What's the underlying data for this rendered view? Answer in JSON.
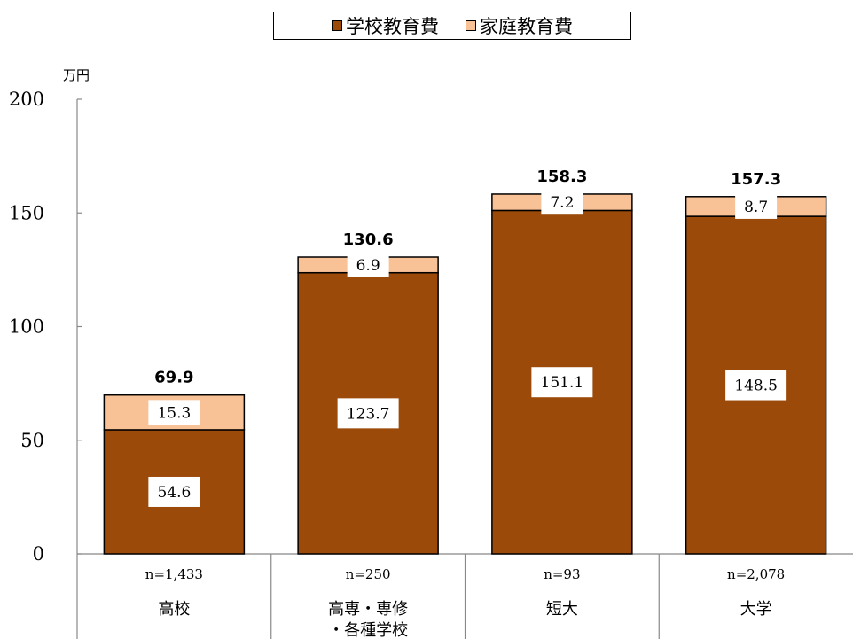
{
  "chart_data": {
    "type": "bar",
    "stacked": true,
    "unit_label": "万円",
    "ylim": [
      0,
      200
    ],
    "y_ticks": [
      "0",
      "50",
      "100",
      "150",
      "200"
    ],
    "categories": [
      "高校",
      "高専・専修・各種学校",
      "短大",
      "大学"
    ],
    "category_lines": [
      [
        "高校"
      ],
      [
        "高専・専修",
        "・各種学校"
      ],
      [
        "短大"
      ],
      [
        "大学"
      ]
    ],
    "sample_sizes": [
      "n=1,433",
      "n=250",
      "n=93",
      "n=2,078"
    ],
    "series": [
      {
        "name": "学校教育費",
        "color": "#9B4A0A",
        "values": [
          54.6,
          123.7,
          151.1,
          148.5
        ],
        "labels": [
          "54.6",
          "123.7",
          "151.1",
          "148.5"
        ]
      },
      {
        "name": "家庭教育費",
        "color": "#F8C196",
        "values": [
          15.3,
          6.9,
          7.2,
          8.7
        ],
        "labels": [
          "15.3",
          "6.9",
          "7.2",
          "8.7"
        ]
      }
    ],
    "totals": [
      "69.9",
      "130.6",
      "158.3",
      "157.3"
    ],
    "legend_position": "top-center",
    "grid": false
  }
}
